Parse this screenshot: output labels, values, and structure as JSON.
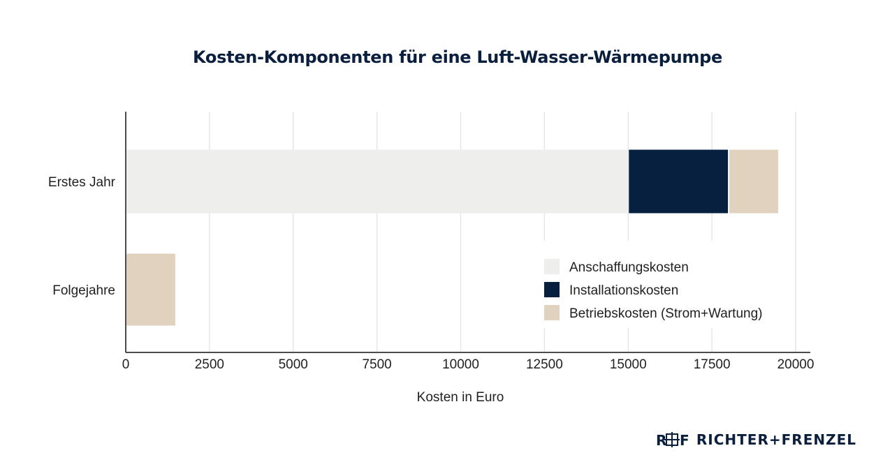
{
  "chart_data": {
    "type": "bar",
    "orientation": "horizontal",
    "stacked": true,
    "title": "Kosten-Komponenten für eine Luft-Wasser-Wärmepumpe",
    "xlabel": "Kosten in Euro",
    "ylabel": "",
    "categories": [
      "Erstes Jahr",
      "Folgejahre"
    ],
    "series": [
      {
        "name": "Anschaffungskosten",
        "color": "#eeeeec",
        "values": [
          15000,
          0
        ]
      },
      {
        "name": "Installationskosten",
        "color": "#07203f",
        "values": [
          3000,
          0
        ]
      },
      {
        "name": "Betriebskosten (Strom+Wartung)",
        "color": "#e0d2bf",
        "values": [
          1500,
          1500
        ]
      }
    ],
    "xlim": [
      0,
      20000
    ],
    "xticks": [
      "0",
      "2500",
      "5000",
      "7500",
      "10000",
      "12500",
      "15000",
      "17500",
      "20000"
    ],
    "grid": "vertical",
    "legend_position": "bottom-right"
  },
  "brand": {
    "name": "RICHTER+FRENZEL",
    "logo_letters": "R F",
    "color": "#0a1f3d"
  }
}
